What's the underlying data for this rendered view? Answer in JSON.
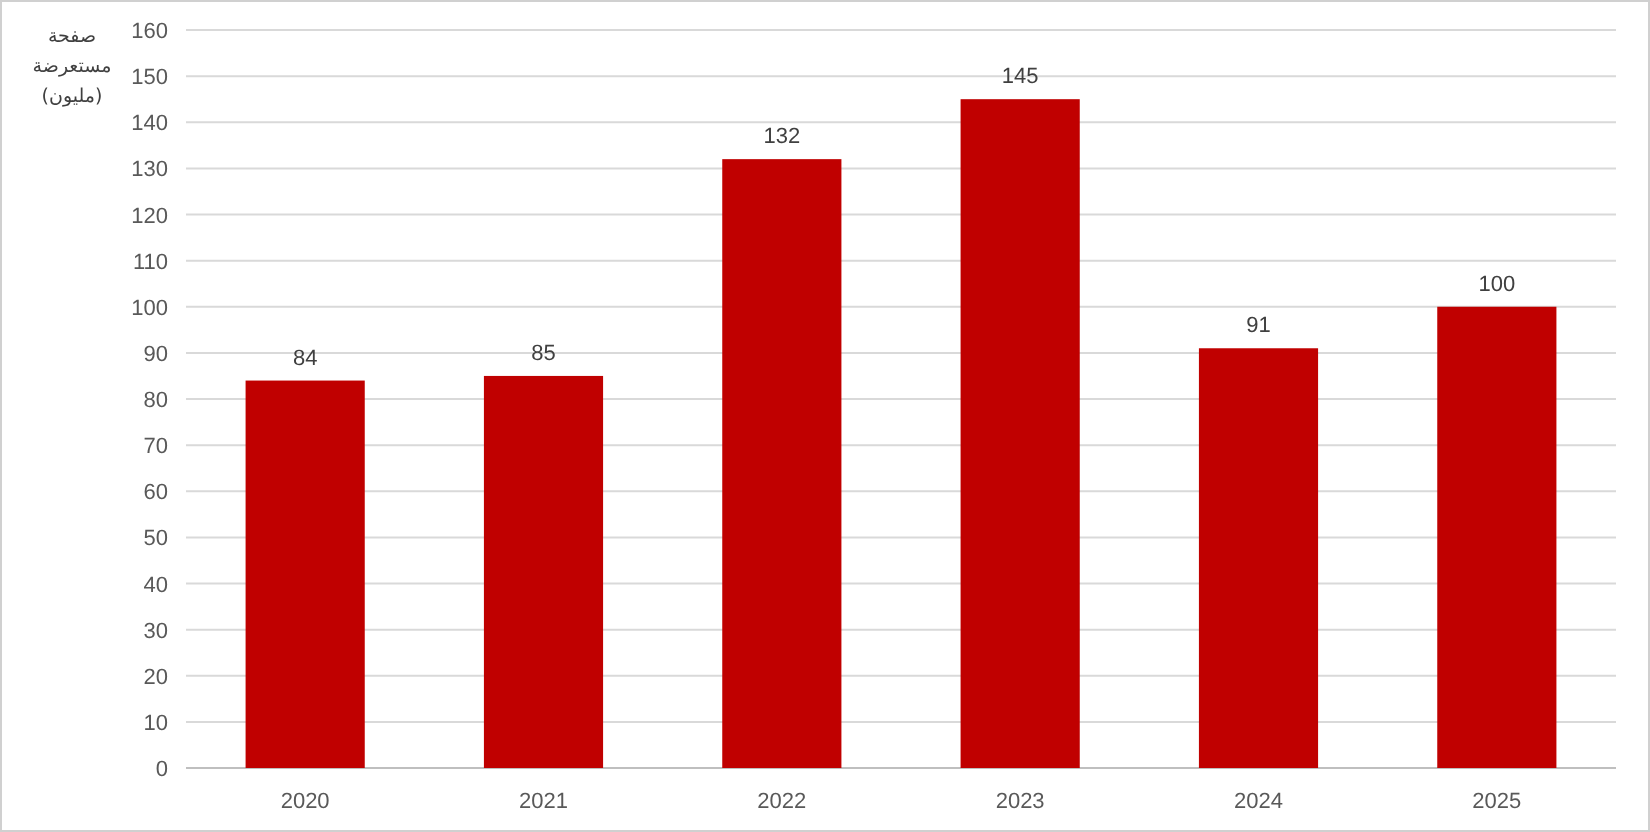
{
  "chart_data": {
    "type": "bar",
    "ylabel": "صفحة مستعرضة (مليون)",
    "categories": [
      "2020",
      "2021",
      "2022",
      "2023",
      "2024",
      "2025"
    ],
    "values": [
      84,
      85,
      132,
      145,
      91,
      100
    ],
    "color": "#c00000",
    "ylim": [
      0,
      160
    ],
    "yticks": [
      0,
      10,
      20,
      30,
      40,
      50,
      60,
      70,
      80,
      90,
      100,
      110,
      120,
      130,
      140,
      150,
      160
    ],
    "grid": "y",
    "data_labels": true
  }
}
